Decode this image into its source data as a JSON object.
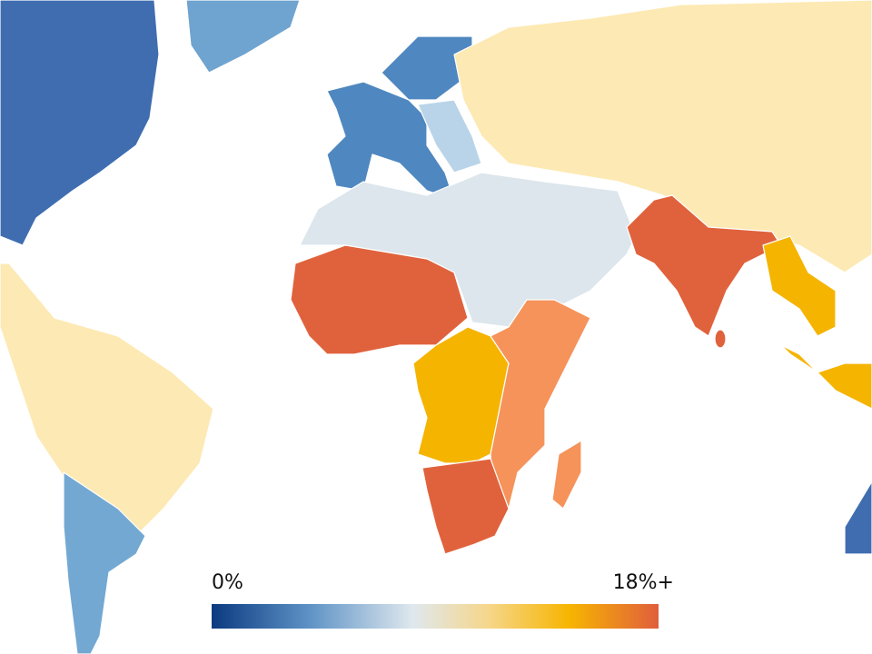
{
  "legend": {
    "min_label": "0%",
    "max_label": "18%+"
  }
}
